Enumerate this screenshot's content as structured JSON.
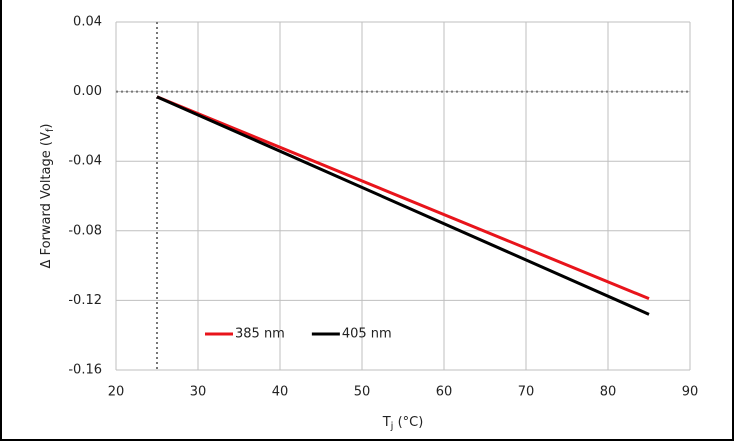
{
  "chart_data": {
    "type": "line",
    "x": [
      25,
      85
    ],
    "series": [
      {
        "name": "385 nm",
        "color": "#e8141b",
        "values": [
          -0.003,
          -0.119
        ]
      },
      {
        "name": "405 nm",
        "color": "#000000",
        "values": [
          -0.003,
          -0.128
        ]
      }
    ],
    "x_label": [
      "T",
      "j",
      " (°C)"
    ],
    "y_label": [
      "Δ Forward Voltage (V",
      "f",
      ")"
    ],
    "xlim": [
      20,
      90
    ],
    "xticks": [
      20,
      30,
      40,
      50,
      60,
      70,
      80,
      90
    ],
    "ylim": [
      -0.16,
      0.04
    ],
    "yticks": [
      -0.16,
      -0.12,
      -0.08,
      -0.04,
      {
        "value": 0,
        "label": "0.00"
      },
      0.04
    ],
    "x_reference": 25,
    "y_reference": 0,
    "grid": true,
    "legend": "lower left"
  }
}
